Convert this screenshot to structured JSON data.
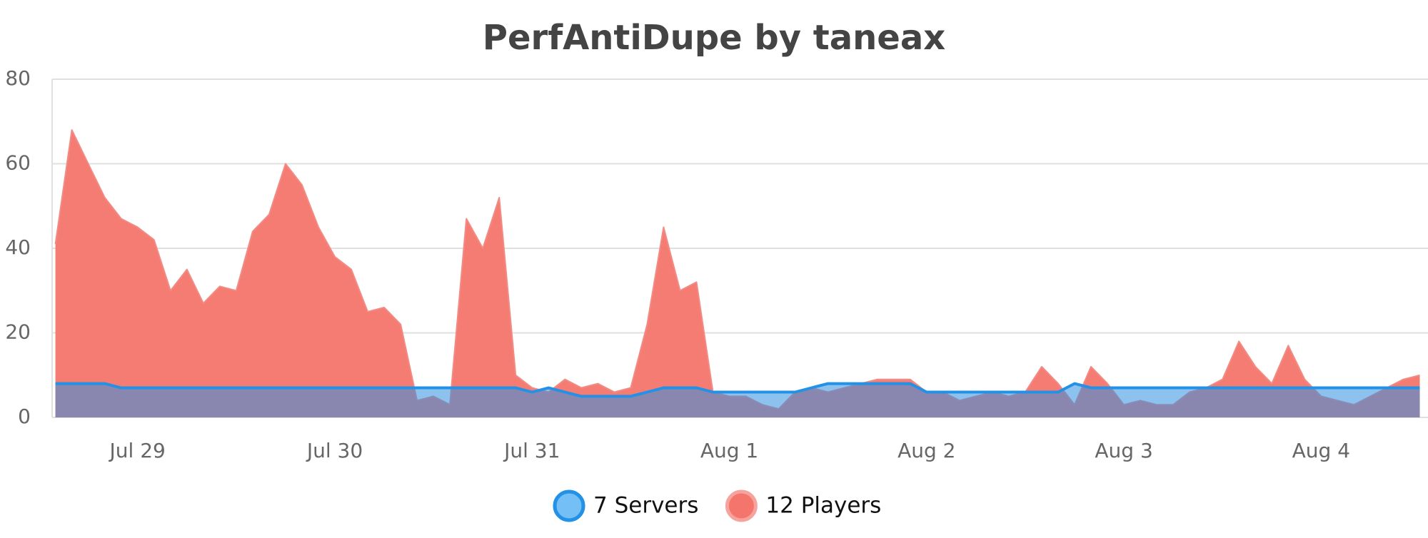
{
  "chart_data": {
    "type": "area",
    "title": "PerfAntiDupe by taneax",
    "x": [
      -10,
      -8,
      -6,
      -4,
      -2,
      0,
      2,
      4,
      6,
      8,
      10,
      12,
      14,
      16,
      18,
      20,
      22,
      24,
      26,
      28,
      30,
      32,
      34,
      36,
      38,
      40,
      42,
      44,
      46,
      48,
      50,
      52,
      54,
      56,
      58,
      60,
      62,
      64,
      66,
      68,
      70,
      72,
      74,
      76,
      78,
      80,
      82,
      84,
      86,
      88,
      90,
      92,
      94,
      96,
      98,
      100,
      102,
      104,
      106,
      108,
      110,
      112,
      114,
      116,
      118,
      120,
      122,
      124,
      126,
      128,
      130,
      132,
      134,
      136,
      138,
      140,
      142,
      144,
      146,
      148,
      150,
      152,
      154,
      156
    ],
    "series": [
      {
        "name": "7 Servers",
        "color": "#2291e6",
        "values": [
          8,
          8,
          8,
          8,
          7,
          7,
          7,
          7,
          7,
          7,
          7,
          7,
          7,
          7,
          7,
          7,
          7,
          7,
          7,
          7,
          7,
          7,
          7,
          7,
          7,
          7,
          7,
          7,
          7,
          6,
          7,
          6,
          5,
          5,
          5,
          5,
          6,
          7,
          7,
          7,
          6,
          6,
          6,
          6,
          6,
          6,
          7,
          8,
          8,
          8,
          8,
          8,
          8,
          6,
          6,
          6,
          6,
          6,
          6,
          6,
          6,
          6,
          8,
          7,
          7,
          7,
          7,
          7,
          7,
          7,
          7,
          7,
          7,
          7,
          7,
          7,
          7,
          7,
          7,
          7,
          7,
          7,
          7,
          7
        ]
      },
      {
        "name": "12 Players",
        "color": "#f4756b",
        "values": [
          41,
          68,
          60,
          52,
          47,
          45,
          42,
          30,
          35,
          27,
          31,
          30,
          44,
          48,
          60,
          55,
          45,
          38,
          35,
          25,
          26,
          22,
          4,
          5,
          3,
          47,
          40,
          52,
          10,
          7,
          6,
          9,
          7,
          8,
          6,
          7,
          22,
          45,
          30,
          32,
          6,
          5,
          5,
          3,
          2,
          6,
          7,
          6,
          7,
          8,
          9,
          9,
          9,
          6,
          6,
          4,
          5,
          6,
          5,
          6,
          12,
          8,
          3,
          12,
          8,
          3,
          4,
          3,
          3,
          6,
          7,
          9,
          18,
          12,
          8,
          17,
          9,
          5,
          4,
          3,
          5,
          7,
          9,
          10
        ]
      }
    ],
    "xlim": [
      -10.4,
      157
    ],
    "xticks": [
      {
        "value": 0,
        "label": "Jul 29"
      },
      {
        "value": 24,
        "label": "Jul 30"
      },
      {
        "value": 48,
        "label": "Jul 31"
      },
      {
        "value": 72,
        "label": "Aug 1"
      },
      {
        "value": 96,
        "label": "Aug 2"
      },
      {
        "value": 120,
        "label": "Aug 3"
      },
      {
        "value": 144,
        "label": "Aug 4"
      }
    ],
    "ylim": [
      0,
      80
    ],
    "yticks": [
      0,
      20,
      40,
      60,
      80
    ],
    "grid": true
  }
}
